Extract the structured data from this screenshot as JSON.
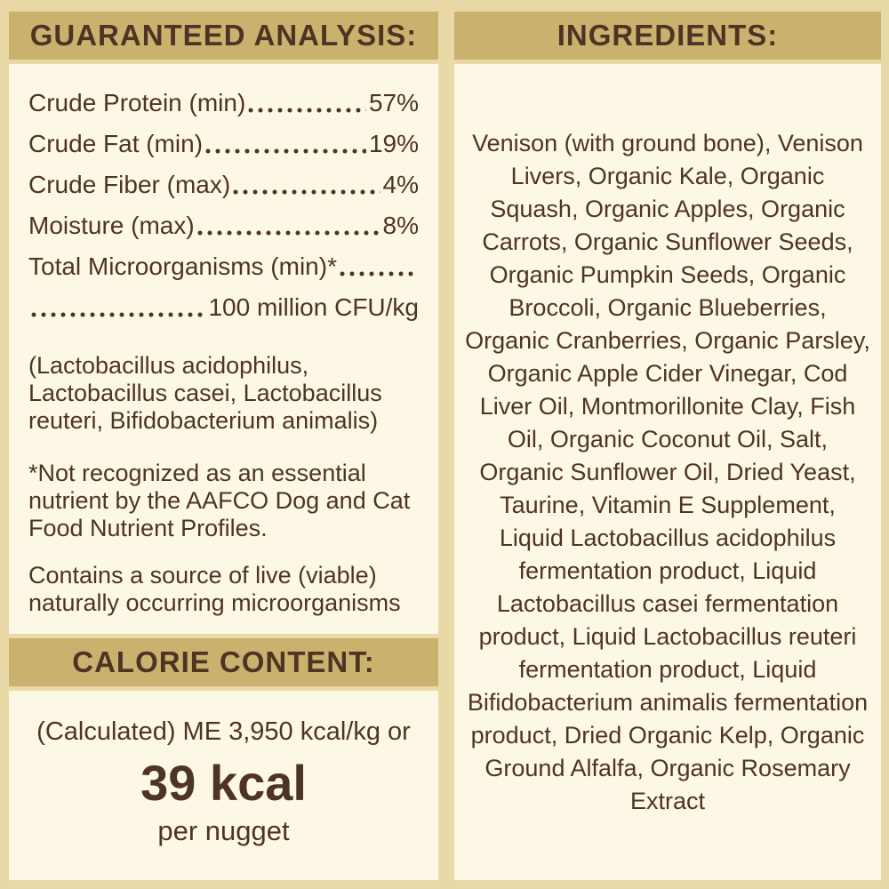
{
  "colors": {
    "background": "#e8d9a6",
    "header_band": "#cab26e",
    "panel": "#fdf7e6",
    "text": "#4e3425"
  },
  "guaranteed_analysis": {
    "title": "GUARANTEED ANALYSIS:",
    "rows": [
      {
        "label": "Crude Protein (min)",
        "value": "57%"
      },
      {
        "label": "Crude Fat (min)",
        "value": "19%"
      },
      {
        "label": "Crude Fiber (max)",
        "value": "4%"
      },
      {
        "label": "Moisture (max)",
        "value": "8%"
      },
      {
        "label": "Total Microorganisms (min)*",
        "value": ""
      },
      {
        "label": "",
        "value": "100 million CFU/kg"
      }
    ],
    "probiotics_note": "(Lactobacillus acidophilus, Lactobacillus casei, Lactobacillus reuteri, Bifidobacterium animalis)",
    "footnote": "*Not recognized as an essential nutrient by the AAFCO Dog and Cat Food Nutrient Profiles.",
    "live_note": "Contains a source of live (viable) naturally occurring microorganisms"
  },
  "calorie_content": {
    "title": "CALORIE CONTENT:",
    "line": "(Calculated) ME 3,950 kcal/kg or",
    "kcal": "39 kcal",
    "unit": "per nugget"
  },
  "ingredients": {
    "title": "INGREDIENTS:",
    "list": "Venison (with ground bone), Venison Livers, Organic Kale, Organic Squash, Organic Apples, Organic Carrots, Organic Sunflower Seeds, Organic Pumpkin Seeds, Organic Broccoli, Organic Blueberries, Organic Cranberries, Organic Parsley, Organic Apple Cider Vinegar, Cod Liver Oil, Montmorillonite Clay, Fish Oil, Organic Coconut Oil, Salt, Organic Sunflower Oil, Dried Yeast, Taurine, Vitamin E Supplement, Liquid Lactobacillus acidophilus fermentation product, Liquid Lactobacillus casei fermentation product, Liquid Lactobacillus reuteri fermentation product, Liquid Bifidobacterium animalis fermentation product, Dried Organic Kelp, Organic Ground Alfalfa, Organic Rosemary Extract"
  }
}
